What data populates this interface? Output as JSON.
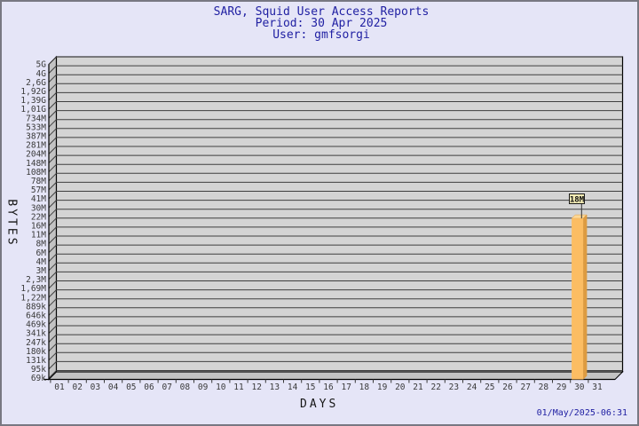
{
  "title": {
    "line1": "SARG, Squid User Access Reports",
    "line2": "Period: 30 Apr 2025",
    "line3": "User: gmfsorgi"
  },
  "footer": {
    "timestamp": "01/May/2025-06:31"
  },
  "chart_data": {
    "type": "bar",
    "title": "SARG, Squid User Access Reports",
    "subtitle": "Period: 30 Apr 2025",
    "user": "User: gmfsorgi",
    "xlabel": "DAYS",
    "ylabel": "BYTES",
    "y_scale": "log",
    "grid": "on",
    "style": "3d",
    "y_ticks": [
      "5G",
      "4G",
      "2,6G",
      "1,92G",
      "1,39G",
      "1,01G",
      "734M",
      "533M",
      "387M",
      "281M",
      "204M",
      "148M",
      "108M",
      "78M",
      "57M",
      "41M",
      "30M",
      "22M",
      "16M",
      "11M",
      "8M",
      "6M",
      "4M",
      "3M",
      "2,3M",
      "1,69M",
      "1,22M",
      "889k",
      "646k",
      "469k",
      "341k",
      "247k",
      "180k",
      "131k",
      "95k",
      "69k"
    ],
    "x_ticks": [
      "01",
      "02",
      "03",
      "04",
      "05",
      "06",
      "07",
      "08",
      "09",
      "10",
      "11",
      "12",
      "13",
      "14",
      "15",
      "16",
      "17",
      "18",
      "19",
      "20",
      "21",
      "22",
      "23",
      "24",
      "25",
      "26",
      "27",
      "28",
      "29",
      "30",
      "31"
    ],
    "bars": [
      {
        "day": "30",
        "label": "18M",
        "tick_above": "22M",
        "tick_below": "16M"
      }
    ],
    "colors": {
      "page_bg": "#E5E5F7",
      "plot_bg": "#D4D4D4",
      "wall_bg": "#C3C3C3",
      "grid_line": "#3F3F3F",
      "frame": "#000000",
      "bar_front": "#FCBD63",
      "bar_top": "#FDD896",
      "bar_side": "#DD9B41",
      "annotation_bg": "#F2EBB4",
      "annotation_border": "#1A1A1A",
      "title_text": "#2121A3",
      "tick_text": "#3A3A3A"
    }
  }
}
